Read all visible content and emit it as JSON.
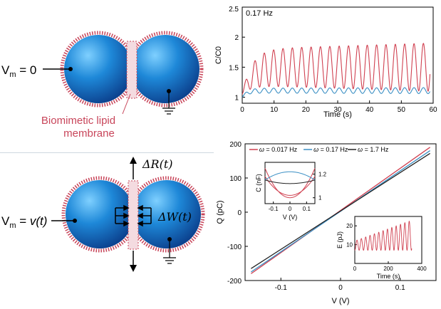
{
  "left_panel": {
    "top": {
      "vm_label_main": "V",
      "vm_label_sub": "m",
      "vm_label_rest": " = 0",
      "membrane_label_line1": "Biomimetic lipid",
      "membrane_label_line2": "membrane"
    },
    "bottom": {
      "vm_label_main": "V",
      "vm_label_sub": "m",
      "vm_label_eq": " = ",
      "vm_label_value": "v(t)",
      "delta_r_label": "ΔR(t)",
      "delta_w_label": "ΔW(t)"
    }
  },
  "colors": {
    "droplet": "#1e88d8",
    "membrane": "#c8455a",
    "red_series": "#d04050",
    "blue_series": "#3a8fc4",
    "black_series": "#222222"
  },
  "chart_data": [
    {
      "type": "line",
      "title": "0.17 Hz",
      "xlabel": "Time (s)",
      "ylabel": "C/C0",
      "xlim": [
        0,
        60
      ],
      "ylim": [
        0.9,
        2.5
      ],
      "xticks": [
        0,
        10,
        20,
        30,
        40,
        50,
        60
      ],
      "yticks": [
        1,
        1.5,
        2
      ],
      "ytick_labels": [
        "1",
        "1.5",
        "2"
      ],
      "top_partial_tick": "2.5",
      "series": [
        {
          "color": "#d04050",
          "start": 1.05,
          "baseline": 1.5,
          "rise_time": 3,
          "amplitude_start": 0.3,
          "amplitude_end": 0.4,
          "frequency_hz": 0.34,
          "min_start": 1.35,
          "max_end": 2.3
        },
        {
          "color": "#3a8fc4",
          "start": 1.0,
          "baseline": 1.11,
          "rise_time": 1.5,
          "amplitude_start": 0.04,
          "amplitude_end": 0.05,
          "frequency_hz": 0.34
        }
      ]
    },
    {
      "type": "line",
      "xlabel": "V (V)",
      "ylabel": "Q (pC)",
      "xlim": [
        -0.16,
        0.16
      ],
      "ylim": [
        -200,
        200
      ],
      "xticks": [
        -0.1,
        0,
        0.1
      ],
      "yticks": [
        -200,
        -100,
        0,
        100,
        200
      ],
      "legend": [
        {
          "prefix": "ω",
          "label": " = 0.017 Hz",
          "color": "#d04050"
        },
        {
          "prefix": "ω",
          "label": " = 0.17 Hz",
          "color": "#3a8fc4"
        },
        {
          "prefix": "ω",
          "label": " = 1.7 Hz",
          "color": "#222222"
        }
      ],
      "series": [
        {
          "name": "0.017 Hz",
          "x": [
            -0.15,
            0.15
          ],
          "y": [
            -180,
            190
          ],
          "color": "#d04050"
        },
        {
          "name": "0.17 Hz",
          "x": [
            -0.15,
            0.15
          ],
          "y": [
            -175,
            180
          ],
          "color": "#3a8fc4"
        },
        {
          "name": "1.7 Hz",
          "x": [
            -0.15,
            0.15
          ],
          "y": [
            -165,
            172
          ],
          "color": "#222222"
        }
      ],
      "inset_left": {
        "ylabel": "C (nF)",
        "xlabel": "V (V)",
        "xticks": [
          -0.1,
          0,
          0.1
        ],
        "yticks_right": [
          1,
          1.2
        ],
        "xlim": [
          -0.15,
          0.15
        ],
        "ylim": [
          0.95,
          1.3
        ],
        "series": [
          {
            "color": "#d04050",
            "curves": [
              {
                "min": 1.02,
                "max": 1.18
              },
              {
                "min": 1.0,
                "max": 1.25
              }
            ]
          },
          {
            "color": "#3a8fc4",
            "curves": [
              {
                "min": 1.15,
                "max": 1.22,
                "inverted": true
              }
            ]
          },
          {
            "color": "#222222",
            "curves": [
              {
                "min": 1.12,
                "max": 1.15
              }
            ]
          }
        ]
      },
      "inset_right": {
        "ylabel": "E (pJ)",
        "xlabel": "Time (s)",
        "xticks": [
          0,
          200,
          400
        ],
        "yticks": [
          10,
          20
        ],
        "xlim": [
          0,
          400
        ],
        "ylim": [
          0,
          25
        ],
        "series": [
          {
            "color": "#d04050",
            "t_end": 340,
            "period": 26,
            "min": 7,
            "max_start": 12,
            "max_end": 23
          }
        ]
      }
    }
  ]
}
